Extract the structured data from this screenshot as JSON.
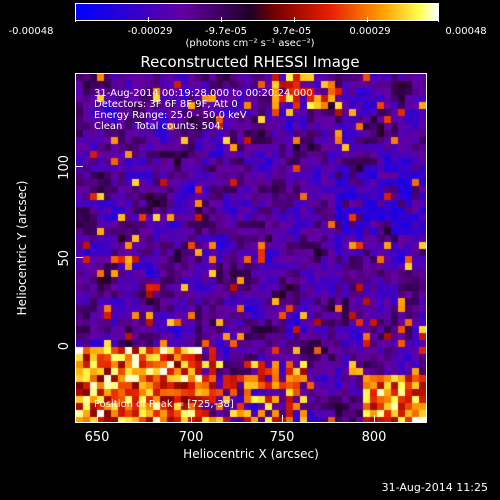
{
  "colorbar": {
    "labels": [
      "-0.00048",
      "-0.00029",
      "-9.7e-05",
      "9.7e-05",
      "0.00029",
      "0.00048"
    ],
    "units": "(photons cm⁻² s⁻¹ asec⁻²)"
  },
  "title": "Reconstructed RHESSI Image",
  "info": {
    "time": "31-Aug-2014 00:19:28.000 to 00:20:24.000",
    "detectors": "Detectors: 3F 6F 8F 9F, Att 0",
    "energy": "Energy Range: 25.0 - 50.0 keV",
    "clean": "Clean    Total counts: 504.",
    "peak": "Position of Peak = [725,-38]"
  },
  "axes": {
    "xlabel": "Heliocentric X (arcsec)",
    "ylabel": "Heliocentric Y (arcsec)",
    "xticks": [
      "650",
      "700",
      "750",
      "800"
    ],
    "yticks": [
      "100",
      "50",
      "0"
    ]
  },
  "footer": "31-Aug-2014 11:25",
  "colors": {
    "low": "#1010ff",
    "mid": "#600090",
    "high": "#ffffff"
  }
}
